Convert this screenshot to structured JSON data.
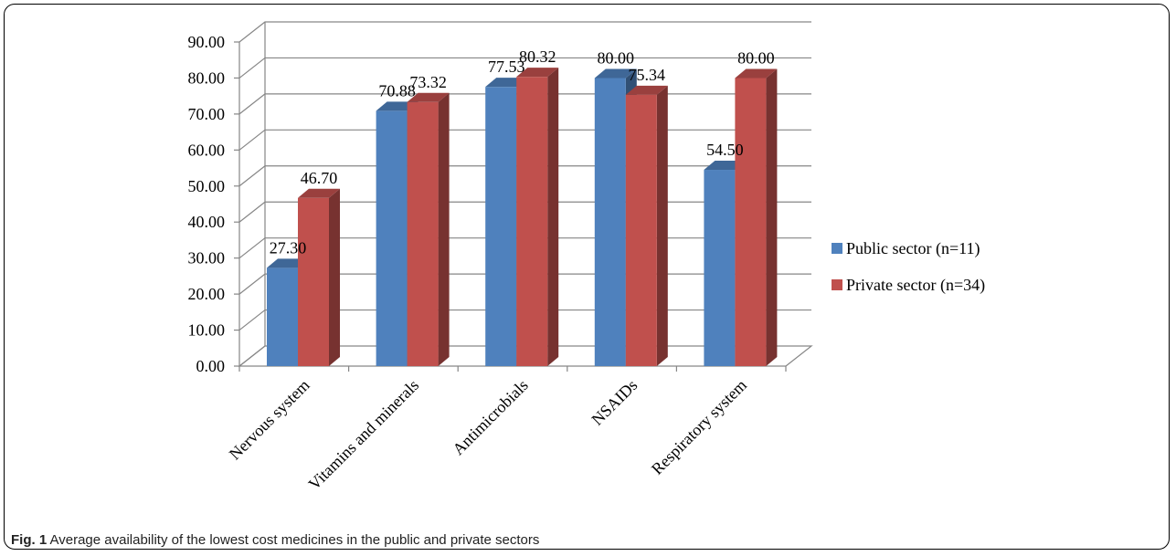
{
  "chart_data": {
    "type": "bar",
    "categories": [
      "Nervous system",
      "Vitamins and minerals",
      "Antimicrobials",
      "NSAIDs",
      "Respiratory system"
    ],
    "series": [
      {
        "name": "Public sector (n=11)",
        "values": [
          27.3,
          70.88,
          77.53,
          80.0,
          54.5
        ],
        "color": "#4f81bd"
      },
      {
        "name": "Private sector (n=34)",
        "values": [
          46.7,
          73.32,
          80.32,
          75.34,
          80.0
        ],
        "color": "#c0504d"
      }
    ],
    "ylim": [
      0,
      90
    ],
    "yticks": [
      "0.00",
      "10.00",
      "20.00",
      "30.00",
      "40.00",
      "50.00",
      "60.00",
      "70.00",
      "80.00",
      "90.00"
    ],
    "data_labels": [
      [
        "27.30",
        "70.88",
        "77.53",
        "80.00",
        "54.50"
      ],
      [
        "46.70",
        "73.32",
        "80.32",
        "75.34",
        "80.00"
      ]
    ],
    "style": "3d-clustered-column",
    "grid": true,
    "legend_position": "right"
  },
  "caption": {
    "label": "Fig. 1",
    "text": " Average availability of the lowest cost medicines in the public and private sectors"
  }
}
